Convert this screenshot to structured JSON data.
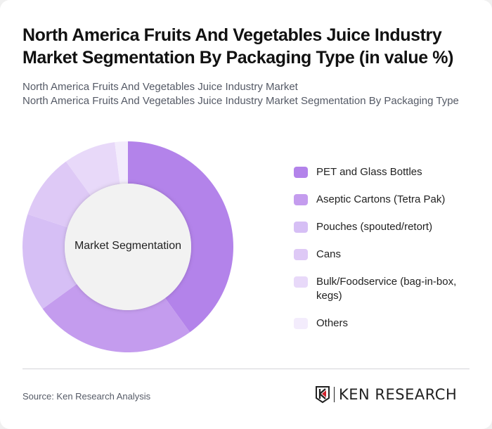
{
  "title": "North America Fruits And Vegetables Juice Industry Market Segmentation By Packaging Type (in value %)",
  "subtitle_line1": "North America Fruits And Vegetables Juice Industry Market",
  "subtitle_line2": "North America Fruits And Vegetables Juice Industry Market Segmentation By Packaging Type",
  "center_label": "Market Segmentation",
  "legend": [
    {
      "label": "PET and Glass Bottles",
      "color": "#b383ea"
    },
    {
      "label": "Aseptic Cartons (Tetra Pak)",
      "color": "#c49cee"
    },
    {
      "label": "Pouches (spouted/retort)",
      "color": "#d6bff5"
    },
    {
      "label": "Cans",
      "color": "#dec9f6"
    },
    {
      "label": "Bulk/Foodservice (bag-in-box, kegs)",
      "color": "#e8d9f9"
    },
    {
      "label": "Others",
      "color": "#f3ecfc"
    }
  ],
  "source": "Source: Ken Research Analysis",
  "logo_text": "KEN RESEARCH",
  "chart_data": {
    "type": "pie",
    "variant": "donut",
    "title": "North America Fruits And Vegetables Juice Industry Market Segmentation By Packaging Type (in value %)",
    "categories": [
      "PET and Glass Bottles",
      "Aseptic Cartons (Tetra Pak)",
      "Pouches (spouted/retort)",
      "Cans",
      "Bulk/Foodservice (bag-in-box, kegs)",
      "Others"
    ],
    "values": [
      40,
      25,
      15,
      10,
      8,
      2
    ],
    "colors": [
      "#b383ea",
      "#c49cee",
      "#d6bff5",
      "#dec9f6",
      "#e8d9f9",
      "#f3ecfc"
    ],
    "center_label": "Market Segmentation",
    "legend_position": "right",
    "unit": "%"
  }
}
